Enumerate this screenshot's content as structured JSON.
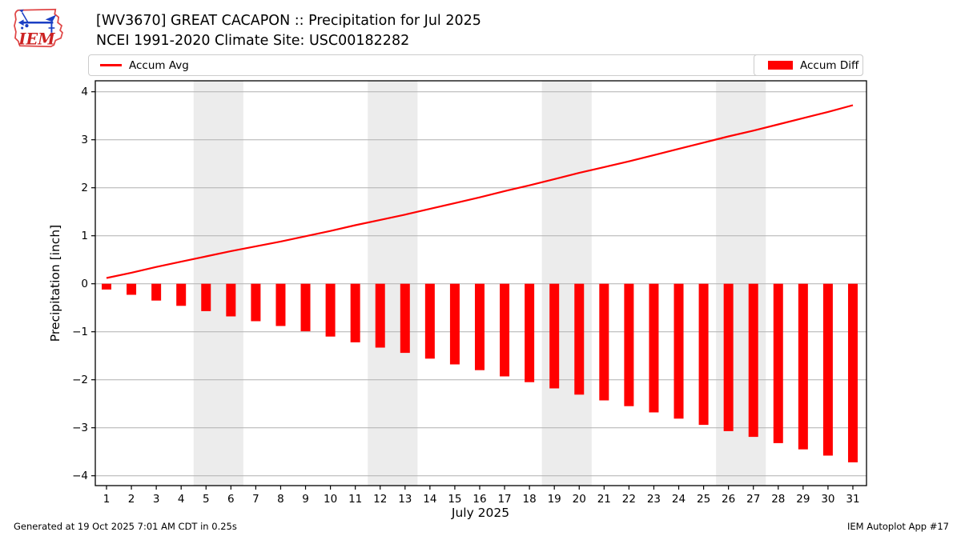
{
  "header": {
    "title_line1": "[WV3670] GREAT CACAPON :: Precipitation for Jul 2025",
    "title_line2": "NCEI 1991-2020 Climate Site: USC00182282",
    "logo_text": "IEM"
  },
  "legend": {
    "avg_label": "Accum Avg",
    "diff_label": "Accum Diff"
  },
  "footer": {
    "generated": "Generated at 19 Oct 2025 7:01 AM CDT in 0.25s",
    "app": "IEM Autoplot App #17"
  },
  "colors": {
    "accent_red": "#ff0000",
    "grid": "#b0b0b0",
    "weekend_band": "#ececec",
    "legend_border": "#cccccc",
    "frame": "#000000"
  },
  "chart_data": {
    "type": "mixed",
    "title": "[WV3670] GREAT CACAPON :: Precipitation for Jul 2025",
    "subtitle": "NCEI 1991-2020 Climate Site: USC00182282",
    "x": [
      1,
      2,
      3,
      4,
      5,
      6,
      7,
      8,
      9,
      10,
      11,
      12,
      13,
      14,
      15,
      16,
      17,
      18,
      19,
      20,
      21,
      22,
      23,
      24,
      25,
      26,
      27,
      28,
      29,
      30,
      31
    ],
    "series": [
      {
        "name": "Accum Avg",
        "type": "line",
        "color": "#ff0000",
        "values": [
          0.12,
          0.23,
          0.35,
          0.46,
          0.57,
          0.68,
          0.78,
          0.88,
          0.99,
          1.1,
          1.22,
          1.33,
          1.44,
          1.56,
          1.68,
          1.8,
          1.93,
          2.05,
          2.18,
          2.31,
          2.43,
          2.55,
          2.68,
          2.81,
          2.94,
          3.07,
          3.19,
          3.32,
          3.45,
          3.58,
          3.72
        ]
      },
      {
        "name": "Accum Diff",
        "type": "bar",
        "color": "#ff0000",
        "values": [
          -0.12,
          -0.23,
          -0.35,
          -0.46,
          -0.57,
          -0.68,
          -0.78,
          -0.88,
          -0.99,
          -1.1,
          -1.22,
          -1.33,
          -1.44,
          -1.56,
          -1.68,
          -1.8,
          -1.93,
          -2.05,
          -2.18,
          -2.31,
          -2.43,
          -2.55,
          -2.68,
          -2.81,
          -2.94,
          -3.07,
          -3.19,
          -3.32,
          -3.45,
          -3.58,
          -3.72
        ]
      }
    ],
    "xlabel": "July 2025",
    "ylabel": "Precipitation [inch]",
    "ylim": [
      -4.2,
      4.2
    ],
    "yticks": [
      {
        "value": 4,
        "label": "4"
      },
      {
        "value": 3,
        "label": "3"
      },
      {
        "value": 2,
        "label": "2"
      },
      {
        "value": 1,
        "label": "1"
      },
      {
        "value": 0,
        "label": "0"
      },
      {
        "value": -1,
        "label": "−1"
      },
      {
        "value": -2,
        "label": "−2"
      },
      {
        "value": -3,
        "label": "−3"
      },
      {
        "value": -4,
        "label": "−4"
      }
    ],
    "weekend_bands_days": [
      [
        4.5,
        6.5
      ],
      [
        11.5,
        13.5
      ],
      [
        18.5,
        20.5
      ],
      [
        25.5,
        27.5
      ]
    ],
    "grid": true,
    "legend_position": "top"
  }
}
